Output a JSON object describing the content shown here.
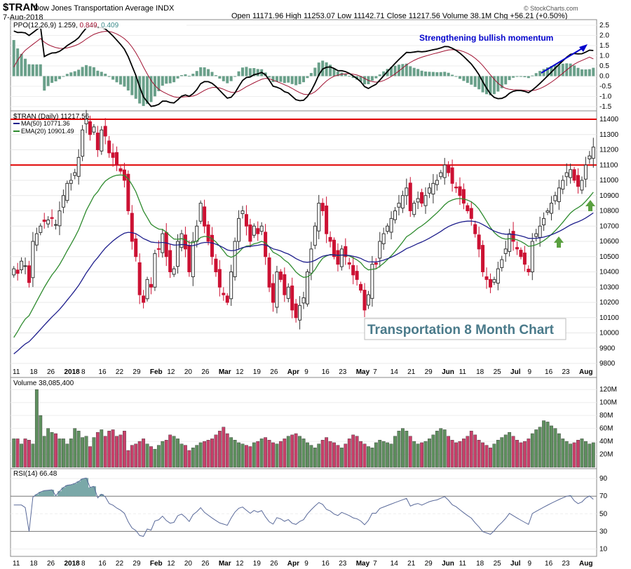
{
  "header": {
    "symbol": "$TRAN",
    "name": "Dow Jones Transportation Average INDX",
    "date": "7-Aug-2018",
    "ohlc": "Open 11171.96  High 11253.07  Low 11142.71  Close 11217.56  Volume 38.1M  Chg +56.21 (+0.50%)",
    "arrow": "▲",
    "watermark": "© StockCharts.com"
  },
  "ppo_panel": {
    "label": "PPO(12,26,9)",
    "v1": "1.259",
    "v2": "0.849",
    "v3": "0.409",
    "annotation": "Strengthening bullish momentum",
    "ticks": [
      "2.5",
      "2.0",
      "1.5",
      "1.0",
      "0.5",
      "0.0",
      "-0.5",
      "-1.0",
      "-1.5"
    ]
  },
  "price_panel": {
    "label": "$TRAN (Daily) 11217.56",
    "ma50_label": "MA(50) 10771.36",
    "ema20_label": "EMA(20) 10901.49",
    "callout": "Transportation 8 Month Chart",
    "ticks": [
      "11400",
      "11300",
      "11200",
      "11100",
      "11000",
      "10900",
      "10800",
      "10700",
      "10600",
      "10500",
      "10400",
      "10300",
      "10200",
      "10100",
      "10000",
      "9900",
      "9800"
    ]
  },
  "volume_panel": {
    "label": "Volume 38,085,400",
    "ticks": [
      "120M",
      "100M",
      "80M",
      "60M",
      "40M",
      "20M"
    ]
  },
  "rsi_panel": {
    "label": "RSI(14) 66.48",
    "ticks": [
      "90",
      "70",
      "50",
      "30",
      "10"
    ]
  },
  "x_axis": {
    "labels": [
      "11",
      "18",
      "26",
      "2018",
      "8",
      "16",
      "22",
      "29",
      "Feb",
      "12",
      "20",
      "26",
      "Mar",
      "12",
      "19",
      "26",
      "Apr",
      "9",
      "16",
      "23",
      "May",
      "7",
      "14",
      "21",
      "29",
      "Jun",
      "11",
      "18",
      "25",
      "Jul",
      "9",
      "16",
      "23",
      "Aug"
    ]
  },
  "chart_data": {
    "type": "candlestick",
    "symbol": "$TRAN",
    "y_range": [
      9750,
      11490
    ],
    "resistance_levels": [
      11400,
      11100
    ],
    "close": [
      10420,
      10390,
      10470,
      10440,
      10330,
      10600,
      10650,
      10700,
      10730,
      10740,
      10750,
      10710,
      10800,
      10900,
      10980,
      11000,
      11050,
      11150,
      11330,
      11400,
      11300,
      11350,
      11200,
      11330,
      11290,
      11180,
      11150,
      11100,
      11060,
      11000,
      10800,
      10600,
      10500,
      10250,
      10200,
      10350,
      10300,
      10520,
      10550,
      10650,
      10500,
      10400,
      10420,
      10600,
      10650,
      10550,
      10400,
      10600,
      10700,
      10850,
      10700,
      10600,
      10500,
      10400,
      10300,
      10250,
      10200,
      10400,
      10600,
      10750,
      10800,
      10700,
      10600,
      10700,
      10650,
      10700,
      10500,
      10300,
      10200,
      10400,
      10350,
      10250,
      10300,
      10150,
      10100,
      10180,
      10230,
      10400,
      10550,
      10700,
      10850,
      10800,
      10650,
      10600,
      10500,
      10450,
      10550,
      10500,
      10450,
      10380,
      10350,
      10280,
      10150,
      10250,
      10450,
      10450,
      10600,
      10650,
      10700,
      10750,
      10800,
      10850,
      10900,
      10950,
      10800,
      10850,
      10880,
      10850,
      10900,
      10950,
      10980,
      11000,
      11050,
      11100,
      11050,
      10980,
      10950,
      10900,
      10850,
      10800,
      10750,
      10650,
      10550,
      10400,
      10350,
      10300,
      10350,
      10420,
      10480,
      10550,
      10650,
      10600,
      10550,
      10500,
      10450,
      10400,
      10600,
      10650,
      10700,
      10750,
      10800,
      10850,
      10900,
      10950,
      11000,
      11050,
      11070,
      11000,
      10960,
      11000,
      11100,
      11160,
      11217.56
    ],
    "volume_millions": [
      44,
      44,
      36,
      44,
      42,
      36,
      120,
      80,
      48,
      60,
      54,
      52,
      44,
      44,
      36,
      44,
      60,
      56,
      46,
      48,
      32,
      46,
      54,
      58,
      48,
      56,
      58,
      48,
      50,
      56,
      26,
      34,
      36,
      40,
      44,
      36,
      32,
      28,
      34,
      40,
      42,
      50,
      48,
      44,
      36,
      34,
      26,
      30,
      34,
      38,
      40,
      42,
      44,
      50,
      56,
      62,
      52,
      46,
      42,
      38,
      36,
      34,
      32,
      38,
      40,
      44,
      46,
      42,
      38,
      36,
      40,
      44,
      48,
      50,
      52,
      48,
      44,
      38,
      34,
      30,
      36,
      42,
      46,
      40,
      38,
      34,
      30,
      36,
      44,
      50,
      48,
      40,
      36,
      32,
      30,
      38,
      42,
      40,
      38,
      36,
      48,
      56,
      60,
      56,
      48,
      40,
      36,
      38,
      40,
      44,
      50,
      56,
      60,
      58,
      48,
      42,
      38,
      40,
      44,
      48,
      56,
      50,
      42,
      38,
      34,
      30,
      36,
      42,
      46,
      50,
      54,
      48,
      42,
      38,
      40,
      44,
      52,
      58,
      62,
      72,
      70,
      64,
      60,
      52,
      44,
      40,
      36,
      38,
      42,
      44,
      40,
      36,
      38
    ],
    "ma50": [
      9850,
      10050,
      10300,
      10550,
      10700,
      10760,
      10771.36
    ],
    "ema20": [
      9970,
      10350,
      10800,
      11100,
      10901.49
    ],
    "ppo_line_last": 1.259,
    "ppo_signal_last": 0.849,
    "ppo_histogram_last": 0.409,
    "rsi_last": 66.48,
    "rsi_range": [
      0,
      100
    ]
  },
  "colors": {
    "up": "#3b7a3b",
    "down": "#cc1133",
    "resistance": "#e00000",
    "ma50": "#1e1e8c",
    "ema20": "#2e8b2e",
    "annotation": "#0000cc",
    "callout_text": "#4a7a8a"
  }
}
